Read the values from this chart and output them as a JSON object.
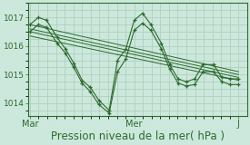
{
  "bg_color": "#cce8dc",
  "grid_color": "#b0d0c0",
  "line_color": "#2d6a2d",
  "marker_color": "#2d6a2d",
  "xlabel": "Pression niveau de la mer( hPa )",
  "xlabel_fontsize": 8.5,
  "yticks": [
    1014,
    1015,
    1016,
    1017
  ],
  "xtick_labels": [
    "Mar",
    "Mer",
    "J"
  ],
  "xtick_positions": [
    0.0,
    0.5,
    1.0
  ],
  "ylim": [
    1013.55,
    1017.5
  ],
  "xlim": [
    -0.01,
    1.04
  ],
  "series": [
    {
      "x": [
        0.0,
        0.04,
        0.08,
        0.13,
        0.17,
        0.21,
        0.25,
        0.29,
        0.33,
        0.38,
        0.42,
        0.46,
        0.5,
        0.54,
        0.58,
        0.63,
        0.67,
        0.71,
        0.75,
        0.79,
        0.83,
        0.88,
        0.92,
        0.96,
        1.0
      ],
      "y": [
        1016.75,
        1017.0,
        1016.9,
        1016.3,
        1015.9,
        1015.4,
        1014.8,
        1014.55,
        1014.1,
        1013.75,
        1015.5,
        1015.9,
        1016.9,
        1017.15,
        1016.75,
        1016.1,
        1015.35,
        1014.85,
        1014.75,
        1014.85,
        1015.35,
        1015.35,
        1014.9,
        1014.85,
        1014.85
      ]
    },
    {
      "x": [
        0.0,
        1.0
      ],
      "y": [
        1016.75,
        1015.1
      ]
    },
    {
      "x": [
        0.0,
        1.0
      ],
      "y": [
        1016.6,
        1015.0
      ]
    },
    {
      "x": [
        0.0,
        1.0
      ],
      "y": [
        1016.5,
        1014.9
      ]
    },
    {
      "x": [
        0.0,
        1.0
      ],
      "y": [
        1016.35,
        1014.8
      ]
    },
    {
      "x": [
        0.0,
        0.04,
        0.08,
        0.13,
        0.17,
        0.21,
        0.25,
        0.29,
        0.33,
        0.38,
        0.42,
        0.46,
        0.5,
        0.54,
        0.58,
        0.63,
        0.67,
        0.71,
        0.75,
        0.79,
        0.83,
        0.88,
        0.92,
        0.96,
        1.0
      ],
      "y": [
        1016.5,
        1016.75,
        1016.65,
        1016.1,
        1015.75,
        1015.25,
        1014.7,
        1014.4,
        1013.95,
        1013.65,
        1015.1,
        1015.55,
        1016.55,
        1016.8,
        1016.55,
        1015.9,
        1015.2,
        1014.7,
        1014.6,
        1014.65,
        1015.1,
        1015.1,
        1014.75,
        1014.65,
        1014.65
      ]
    }
  ]
}
